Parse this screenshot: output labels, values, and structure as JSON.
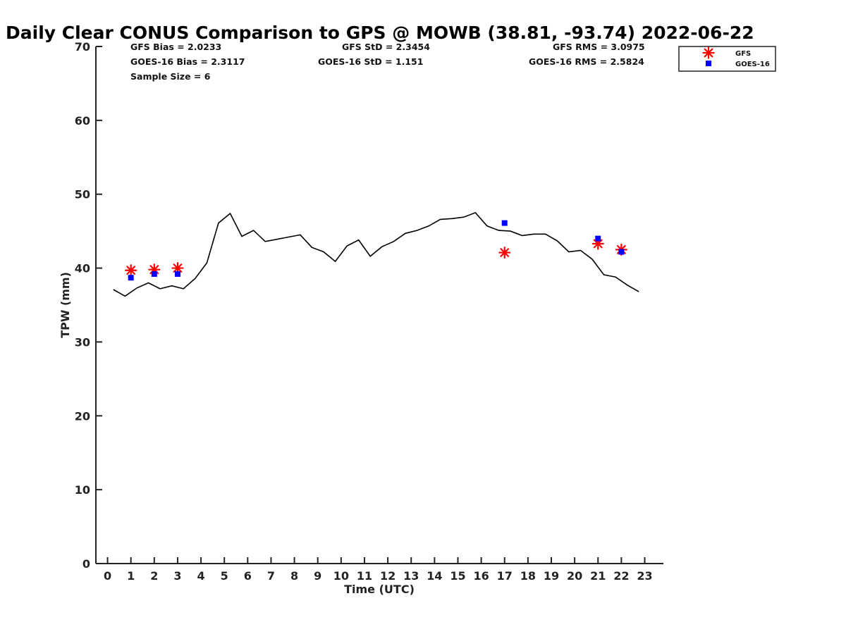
{
  "chart_data": {
    "type": "scatter",
    "title": "Daily Clear CONUS Comparison to GPS @ MOWB (38.81, -93.74) 2022-06-22",
    "xlabel": "Time (UTC)",
    "ylabel": "TPW (mm)",
    "xlim": [
      -0.5,
      23.8
    ],
    "ylim": [
      0,
      70
    ],
    "xticks": [
      "0",
      "1",
      "2",
      "3",
      "4",
      "5",
      "6",
      "7",
      "8",
      "9",
      "10",
      "11",
      "12",
      "13",
      "14",
      "15",
      "16",
      "17",
      "18",
      "19",
      "20",
      "21",
      "22",
      "23"
    ],
    "yticks": [
      "0",
      "10",
      "20",
      "30",
      "40",
      "50",
      "60",
      "70"
    ],
    "grid": false,
    "legend_position": "top-right",
    "stats": [
      {
        "text": "GFS Bias = 2.0233"
      },
      {
        "text": "GFS StD = 2.3454"
      },
      {
        "text": "GFS RMS = 3.0975"
      },
      {
        "text": "GOES-16 Bias = 2.3117"
      },
      {
        "text": "GOES-16 StD = 1.151"
      },
      {
        "text": "GOES-16 RMS = 2.5824"
      },
      {
        "text": "Sample Size = 6"
      }
    ],
    "gps_line": {
      "x": [
        0.25,
        0.75,
        1.25,
        1.75,
        2.25,
        2.75,
        3.25,
        3.75,
        4.25,
        4.75,
        5.25,
        5.75,
        6.25,
        6.75,
        7.25,
        7.75,
        8.25,
        8.75,
        9.25,
        9.75,
        10.25,
        10.75,
        11.25,
        11.75,
        12.25,
        12.75,
        13.25,
        13.75,
        14.25,
        14.75,
        15.25,
        15.75,
        16.25,
        16.75,
        17.25,
        17.75,
        18.25,
        18.75,
        19.25,
        19.75,
        20.25,
        20.75,
        21.25,
        21.75,
        22.25,
        22.75
      ],
      "y": [
        37.1,
        36.2,
        37.3,
        38.0,
        37.2,
        37.6,
        37.2,
        38.6,
        40.7,
        46.1,
        47.4,
        44.3,
        45.1,
        43.6,
        43.9,
        44.2,
        44.5,
        42.8,
        42.2,
        40.9,
        43.0,
        43.8,
        41.6,
        42.9,
        43.6,
        44.7,
        45.1,
        45.7,
        46.6,
        46.7,
        46.9,
        47.5,
        45.7,
        45.1,
        45.0,
        44.4,
        44.6,
        44.6,
        43.7,
        42.2,
        42.4,
        41.2,
        39.1,
        38.8,
        37.7,
        36.8
      ]
    },
    "series": [
      {
        "name": "GFS",
        "color": "#ff0000",
        "marker": "asterisk",
        "x": [
          1,
          2,
          3,
          17,
          21,
          22
        ],
        "y": [
          39.7,
          39.8,
          40.0,
          42.1,
          43.3,
          42.5
        ]
      },
      {
        "name": "GOES-16",
        "color": "#0000ff",
        "marker": "square",
        "x": [
          1,
          2,
          3,
          17,
          21,
          22
        ],
        "y": [
          38.7,
          39.2,
          39.2,
          46.1,
          44.0,
          42.2
        ]
      }
    ]
  }
}
